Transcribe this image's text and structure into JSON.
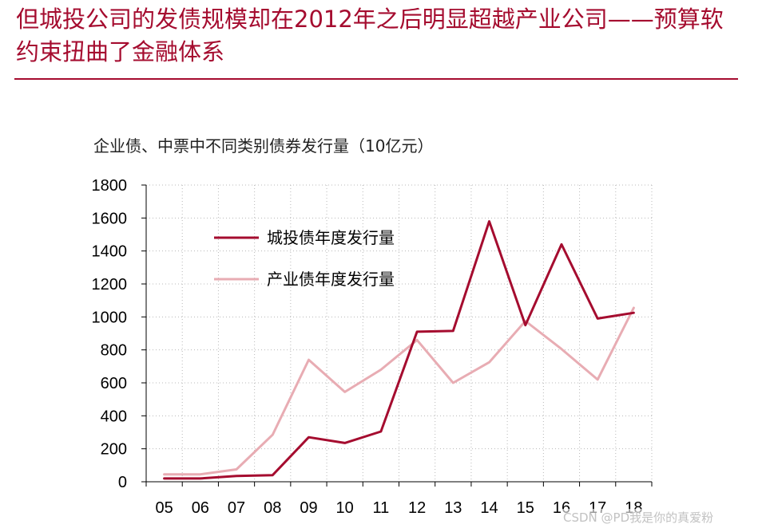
{
  "title": "但城投公司的发债规模却在2012年之后明显超越产业公司——预算软约束扭曲了金融体系",
  "watermark": "CSDN @PD我是你的真爱粉",
  "chart_data": {
    "type": "line",
    "title": "企业债、中票中不同类别债券发行量（10亿元）",
    "categories": [
      "05",
      "06",
      "07",
      "08",
      "09",
      "10",
      "11",
      "12",
      "13",
      "14",
      "15",
      "16",
      "17",
      "18"
    ],
    "ylim": [
      0,
      1800
    ],
    "yticks": [
      0,
      200,
      400,
      600,
      800,
      1000,
      1200,
      1400,
      1600,
      1800
    ],
    "grid": true,
    "legend_position": "top-left",
    "series": [
      {
        "name": "城投债年度发行量",
        "color": "#a50c2f",
        "values": [
          20,
          20,
          35,
          40,
          270,
          235,
          305,
          910,
          915,
          1580,
          950,
          1440,
          990,
          1025
        ]
      },
      {
        "name": "产业债年度发行量",
        "color": "#e8acb3",
        "values": [
          45,
          45,
          75,
          285,
          740,
          545,
          680,
          860,
          600,
          725,
          975,
          805,
          620,
          1055
        ]
      }
    ]
  }
}
